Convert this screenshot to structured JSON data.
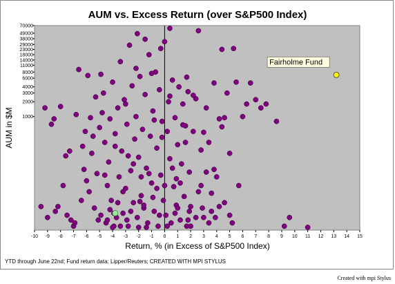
{
  "chart_data": {
    "type": "scatter",
    "title": "AUM vs. Excess Return (over S&P500 Index)",
    "xlabel": "Return, % (in Excess of S&P500 Index)",
    "ylabel": "AUM in $M",
    "xlim": [
      -10,
      15
    ],
    "ylim": [
      5,
      70000
    ],
    "y_scale": "log",
    "x_ticks": [
      -10,
      -9,
      -8,
      -7,
      -6,
      -5,
      -4,
      -3,
      -2,
      -1,
      0,
      1,
      2,
      3,
      4,
      5,
      6,
      7,
      8,
      9,
      10,
      11,
      12,
      13,
      14,
      15
    ],
    "y_ticks": [
      1000,
      2000,
      3000,
      4000,
      6000,
      8000,
      11000,
      14000,
      18000,
      23000,
      29000,
      38000,
      49000,
      70000
    ],
    "y_tick_labels": [
      "1000",
      "2000",
      "3000",
      "4000",
      "6000",
      "8000",
      "11000",
      "14000",
      "18000",
      "23000",
      "29000",
      "38000",
      "49000",
      "70000"
    ],
    "grid": false,
    "footnote": "YTD through June 22nd; Fund return data: Lipper/Reuters; CREATED WITH MPI STYLUS",
    "credit": "Created with mpi Stylus",
    "annotation": {
      "text": "Fairholme Fund",
      "x": 13.2,
      "y": 7000
    },
    "colors": {
      "points": "#800080",
      "points_edge": "#2a002a",
      "highlight": "#ffff00",
      "green_point": "#90ee90",
      "plot_bg": "#c0c0c0",
      "annotation_bg": "#ffffe1"
    },
    "series": [
      {
        "values": [
          [
            -9.5,
            15
          ],
          [
            -9.2,
            1500
          ],
          [
            -8.7,
            700
          ],
          [
            -8.5,
            900
          ],
          [
            -8.2,
            15
          ],
          [
            -8.0,
            1600
          ],
          [
            -7.5,
            10
          ],
          [
            -7.2,
            8
          ],
          [
            -7.0,
            6
          ],
          [
            -6.8,
            1100
          ],
          [
            -6.6,
            9000
          ],
          [
            -6.3,
            250
          ],
          [
            -6.1,
            500
          ],
          [
            -5.9,
            6800
          ],
          [
            -5.8,
            30
          ],
          [
            -5.6,
            180
          ],
          [
            -5.4,
            14
          ],
          [
            -5.3,
            2500
          ],
          [
            -5.2,
            70
          ],
          [
            -5.0,
            600
          ],
          [
            -4.9,
            10
          ],
          [
            -4.8,
            1200
          ],
          [
            -4.7,
            3000
          ],
          [
            -4.6,
            300
          ],
          [
            -4.5,
            7
          ],
          [
            -4.4,
            40
          ],
          [
            -4.3,
            120
          ],
          [
            -4.2,
            900
          ],
          [
            -4.1,
            20
          ],
          [
            -4.0,
            5000
          ],
          [
            -3.9,
            6
          ],
          [
            -3.8,
            450
          ],
          [
            -3.7,
            9
          ],
          [
            -3.6,
            1500
          ],
          [
            -3.5,
            60
          ],
          [
            -3.4,
            13000
          ],
          [
            -3.3,
            200
          ],
          [
            -3.2,
            11
          ],
          [
            -3.1,
            2200
          ],
          [
            -3.0,
            35
          ],
          [
            -2.9,
            700
          ],
          [
            -2.8,
            6
          ],
          [
            -2.7,
            28000
          ],
          [
            -2.6,
            80
          ],
          [
            -2.5,
            4200
          ],
          [
            -2.4,
            18
          ],
          [
            -2.3,
            350
          ],
          [
            -2.2,
            1000
          ],
          [
            -2.1,
            9
          ],
          [
            -2.0,
            150
          ],
          [
            -1.9,
            6500
          ],
          [
            -1.8,
            25
          ],
          [
            -1.7,
            550
          ],
          [
            -1.6,
            14
          ],
          [
            -1.5,
            2800
          ],
          [
            -1.4,
            90
          ],
          [
            -1.3,
            7
          ],
          [
            -1.2,
            18000
          ],
          [
            -1.1,
            400
          ],
          [
            -1.0,
            45
          ],
          [
            -0.9,
            1300
          ],
          [
            -0.8,
            12
          ],
          [
            -0.7,
            8000
          ],
          [
            -0.6,
            230
          ],
          [
            -0.5,
            6
          ],
          [
            -0.4,
            3500
          ],
          [
            -0.3,
            65
          ],
          [
            -0.2,
            800
          ],
          [
            -0.1,
            20
          ],
          [
            0.0,
            33000
          ],
          [
            0.1,
            10
          ],
          [
            0.2,
            500
          ],
          [
            0.3,
            2000
          ],
          [
            0.4,
            140
          ],
          [
            0.5,
            7
          ],
          [
            0.6,
            5500
          ],
          [
            0.7,
            38
          ],
          [
            0.8,
            950
          ],
          [
            0.9,
            16
          ],
          [
            1.0,
            270
          ],
          [
            1.1,
            4000
          ],
          [
            1.2,
            8
          ],
          [
            1.3,
            110
          ],
          [
            1.4,
            1800
          ],
          [
            1.5,
            24
          ],
          [
            1.6,
            650
          ],
          [
            1.7,
            6
          ],
          [
            1.8,
            3200
          ],
          [
            1.9,
            75
          ],
          [
            2.0,
            15
          ],
          [
            2.2,
            500
          ],
          [
            2.4,
            2300
          ],
          [
            2.6,
            55000
          ],
          [
            2.8,
            40
          ],
          [
            3.0,
            9
          ],
          [
            3.2,
            1500
          ],
          [
            3.4,
            300
          ],
          [
            3.6,
            12
          ],
          [
            3.8,
            4800
          ],
          [
            4.0,
            60
          ],
          [
            4.2,
            900
          ],
          [
            4.4,
            23000
          ],
          [
            4.6,
            18
          ],
          [
            4.8,
            3000
          ],
          [
            5.0,
            180
          ],
          [
            5.2,
            7
          ],
          [
            5.3,
            24000
          ],
          [
            5.5,
            5000
          ],
          [
            5.7,
            40
          ],
          [
            6.0,
            1000
          ],
          [
            6.3,
            1800
          ],
          [
            6.6,
            4800
          ],
          [
            7.0,
            2200
          ],
          [
            7.4,
            1500
          ],
          [
            7.8,
            1800
          ],
          [
            8.6,
            800
          ],
          [
            9.2,
            6
          ],
          [
            9.6,
            9
          ],
          [
            11.0,
            5.5
          ],
          [
            -9.0,
            9
          ],
          [
            -8.4,
            12
          ],
          [
            -7.8,
            40
          ],
          [
            -7.3,
            200
          ],
          [
            -6.9,
            7
          ],
          [
            -6.4,
            20
          ],
          [
            -6.0,
            50
          ],
          [
            -5.5,
            400
          ],
          [
            -5.1,
            8
          ],
          [
            -4.6,
            65
          ],
          [
            -4.2,
            13
          ],
          [
            -3.8,
            250
          ],
          [
            -3.4,
            6
          ],
          [
            -3.0,
            1800
          ],
          [
            -2.6,
            12
          ],
          [
            -2.2,
            9500
          ],
          [
            -1.8,
            60
          ],
          [
            -1.4,
            5
          ],
          [
            -1.0,
            7500
          ],
          [
            -0.6,
            35
          ],
          [
            -0.2,
            380
          ],
          [
            0.2,
            6
          ],
          [
            0.6,
            90
          ],
          [
            1.0,
            14
          ],
          [
            1.4,
            680
          ],
          [
            1.8,
            8
          ],
          [
            2.2,
            2700
          ],
          [
            2.6,
            30
          ],
          [
            3.0,
            480
          ],
          [
            3.4,
            7
          ],
          [
            3.8,
            85
          ],
          [
            4.2,
            15
          ],
          [
            4.6,
            950
          ],
          [
            5.0,
            10
          ],
          [
            -4.4,
            8
          ],
          [
            -3.6,
            18
          ],
          [
            -2.8,
            160
          ],
          [
            -2.0,
            5
          ],
          [
            -1.2,
            70
          ],
          [
            -0.4,
            10
          ],
          [
            0.4,
            2600
          ],
          [
            1.2,
            45
          ],
          [
            2.0,
            6
          ],
          [
            2.8,
            210
          ],
          [
            3.6,
            28
          ],
          [
            4.4,
            620
          ],
          [
            -4.0,
            5
          ],
          [
            -3.2,
            30
          ],
          [
            -2.4,
            110
          ],
          [
            -1.6,
            16
          ],
          [
            -0.8,
            850
          ],
          [
            0.0,
            40
          ],
          [
            0.8,
            11
          ],
          [
            1.6,
            300
          ],
          [
            2.4,
            9
          ],
          [
            3.2,
            75
          ],
          [
            -1.5,
            37000
          ],
          [
            -0.3,
            24000
          ],
          [
            0.4,
            65000
          ],
          [
            1.7,
            6300
          ],
          [
            -5.7,
            950
          ],
          [
            -6.2,
            85
          ],
          [
            -7.6,
            160
          ],
          [
            -4.9,
            7200
          ],
          [
            -2.1,
            48000
          ],
          [
            -3.9,
            11
          ],
          [
            -2.9,
            8
          ],
          [
            -1.9,
            19
          ],
          [
            -0.9,
            23
          ],
          [
            0.9,
            55
          ],
          [
            1.9,
            12
          ],
          [
            2.9,
            14
          ],
          [
            3.9,
            9
          ]
        ]
      }
    ]
  }
}
